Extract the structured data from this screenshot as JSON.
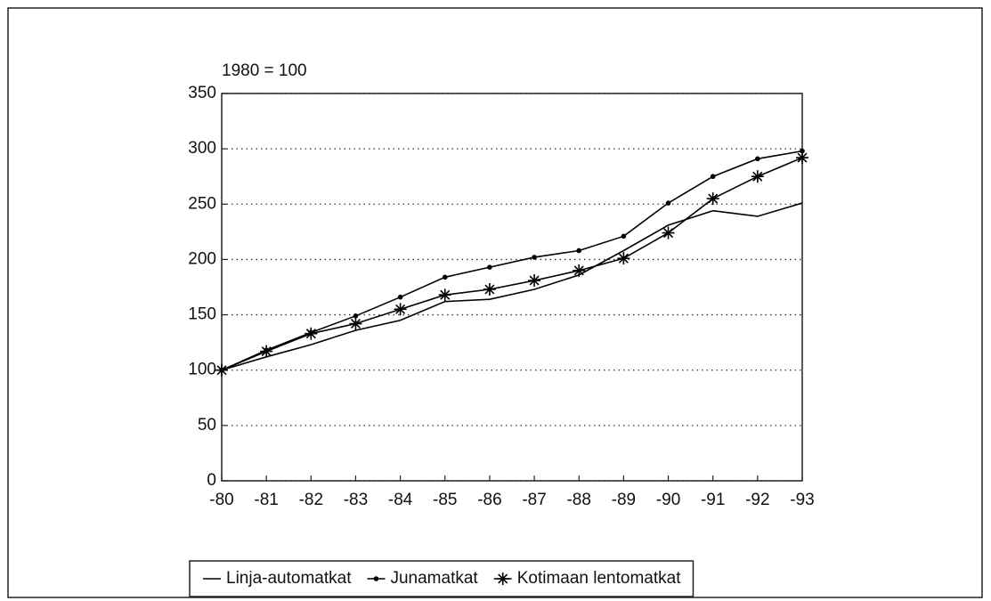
{
  "chart_data": {
    "type": "line",
    "y_label": "1980 = 100",
    "categories": [
      "-80",
      "-81",
      "-82",
      "-83",
      "-84",
      "-85",
      "-86",
      "-87",
      "-88",
      "-89",
      "-90",
      "-91",
      "-92",
      "-93"
    ],
    "series": [
      {
        "name": "Linja-automatkat",
        "color": "#000000",
        "marker": "none",
        "values": [
          100,
          112,
          123,
          136,
          145,
          162,
          164,
          173,
          186,
          208,
          231,
          244,
          239,
          251
        ]
      },
      {
        "name": "Junamatkat",
        "color": "#000000",
        "marker": "dot",
        "values": [
          100,
          118,
          134,
          149,
          166,
          184,
          193,
          202,
          208,
          221,
          251,
          275,
          291,
          298
        ]
      },
      {
        "name": "Kotimaan lentomatkat",
        "color": "#000000",
        "marker": "star",
        "values": [
          100,
          117,
          133,
          142,
          155,
          168,
          173,
          181,
          190,
          201,
          224,
          255,
          275,
          292
        ]
      }
    ],
    "ylim": [
      0,
      350
    ],
    "yticks": [
      0,
      50,
      100,
      150,
      200,
      250,
      300,
      350
    ],
    "grid": true,
    "legend": "bottom"
  }
}
